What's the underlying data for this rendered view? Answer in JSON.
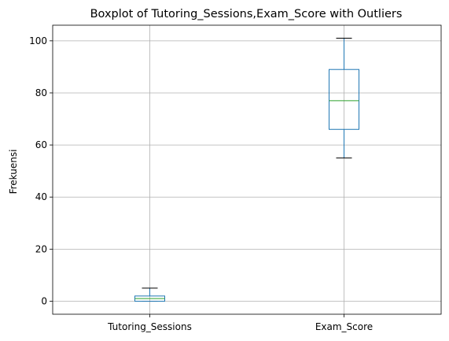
{
  "chart_data": {
    "type": "boxplot",
    "title": "Boxplot of Tutoring_Sessions,Exam_Score with Outliers",
    "xlabel": "",
    "ylabel": "Frekuensi",
    "ylim": [
      -5,
      106
    ],
    "yticks": [
      0,
      20,
      40,
      60,
      80,
      100
    ],
    "grid": true,
    "categories": [
      "Tutoring_Sessions",
      "Exam_Score"
    ],
    "boxes": [
      {
        "category": "Tutoring_Sessions",
        "whisker_low": 0,
        "q1": 0,
        "median": 1,
        "q3": 2,
        "whisker_high": 5
      },
      {
        "category": "Exam_Score",
        "whisker_low": 55,
        "q1": 66,
        "median": 77,
        "q3": 89,
        "whisker_high": 101
      }
    ],
    "colors": {
      "box": "#1f77b4",
      "median": "#2ca02c",
      "whisker": "#1f77b4",
      "cap": "#000000",
      "grid": "#b0b0b0"
    }
  }
}
